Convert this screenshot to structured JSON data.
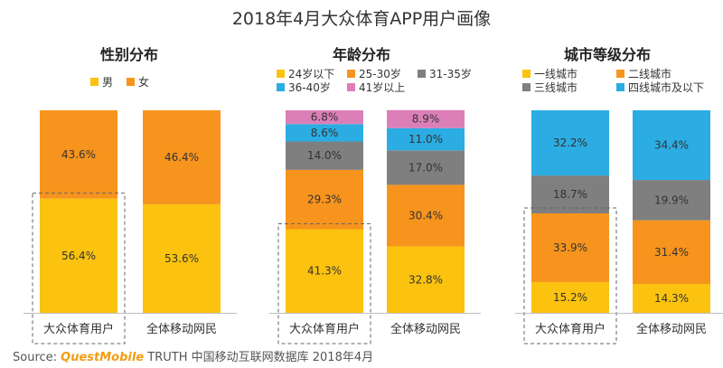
{
  "title": "2018年4月大众体育APP用户画像",
  "source": {
    "prefix": "Source:",
    "brand": "QuestMobile",
    "text": "TRUTH 中国移动互联网数据库 2018年4月"
  },
  "colors": {
    "yellow": "#fbc20f",
    "orange": "#f7941d",
    "gray": "#7f7f7f",
    "blue": "#2bace2",
    "pink": "#dc7fb8",
    "highlight_box": "#666666",
    "label_text": "#333333"
  },
  "chart_data": [
    {
      "type": "bar",
      "stacked": true,
      "title": "性别分布",
      "categories": [
        "大众体育用户",
        "全体移动网民"
      ],
      "series": [
        {
          "name": "男",
          "color": "#fbc20f",
          "values": [
            56.4,
            53.6
          ]
        },
        {
          "name": "女",
          "color": "#f7941d",
          "values": [
            43.6,
            46.4
          ]
        }
      ],
      "value_suffix": "%",
      "ylim": [
        0,
        100
      ],
      "highlighted_category": "大众体育用户",
      "highlighted_series": "男"
    },
    {
      "type": "bar",
      "stacked": true,
      "title": "年龄分布",
      "categories": [
        "大众体育用户",
        "全体移动网民"
      ],
      "series": [
        {
          "name": "24岁以下",
          "color": "#fbc20f",
          "values": [
            41.3,
            32.8
          ]
        },
        {
          "name": "25-30岁",
          "color": "#f7941d",
          "values": [
            29.3,
            30.4
          ]
        },
        {
          "name": "31-35岁",
          "color": "#7f7f7f",
          "values": [
            14.0,
            17.0
          ]
        },
        {
          "name": "36-40岁",
          "color": "#2bace2",
          "values": [
            8.6,
            11.0
          ]
        },
        {
          "name": "41岁以上",
          "color": "#dc7fb8",
          "values": [
            6.8,
            8.9
          ]
        }
      ],
      "value_suffix": "%",
      "ylim": [
        0,
        100
      ],
      "highlighted_category": "大众体育用户",
      "highlighted_series": "24岁以下"
    },
    {
      "type": "bar",
      "stacked": true,
      "title": "城市等级分布",
      "categories": [
        "大众体育用户",
        "全体移动网民"
      ],
      "series": [
        {
          "name": "一线城市",
          "color": "#fbc20f",
          "values": [
            15.2,
            14.3
          ]
        },
        {
          "name": "二线城市",
          "color": "#f7941d",
          "values": [
            33.9,
            31.4
          ]
        },
        {
          "name": "三线城市",
          "color": "#7f7f7f",
          "values": [
            18.7,
            19.9
          ]
        },
        {
          "name": "四线城市及以下",
          "color": "#2bace2",
          "values": [
            32.2,
            34.4
          ]
        }
      ],
      "value_suffix": "%",
      "ylim": [
        0,
        100
      ],
      "highlighted_category": "大众体育用户",
      "highlighted_series": "二线城市"
    }
  ]
}
